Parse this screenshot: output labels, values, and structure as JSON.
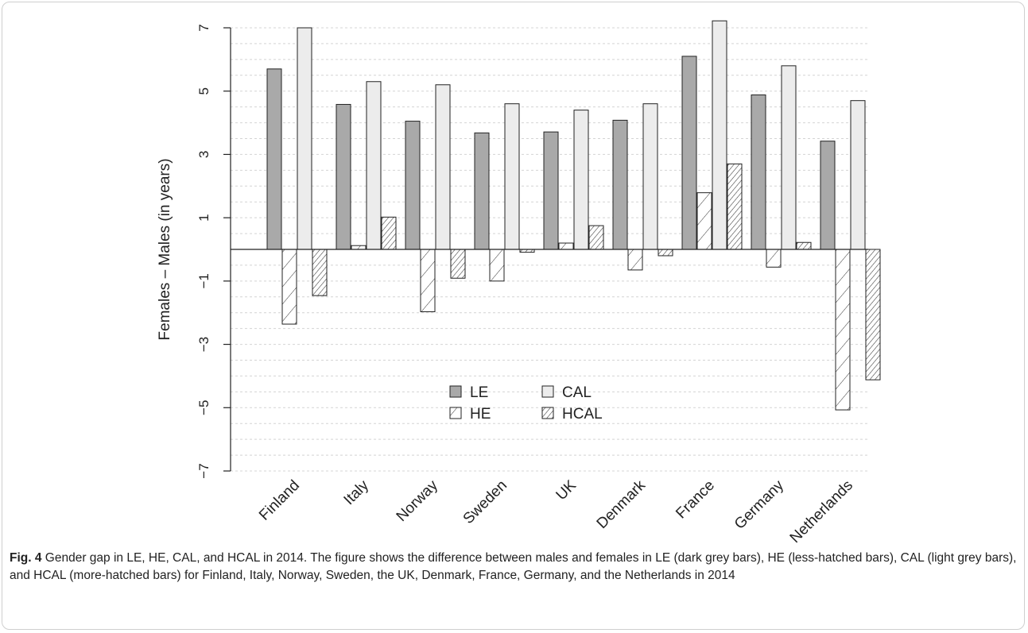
{
  "chart_data": {
    "type": "bar",
    "categories": [
      "Finland",
      "Italy",
      "Norway",
      "Sweden",
      "UK",
      "Denmark",
      "France",
      "Germany",
      "Netherlands"
    ],
    "series": [
      {
        "name": "LE",
        "pattern": "dark",
        "values": [
          5.7,
          4.58,
          4.05,
          3.68,
          3.71,
          4.08,
          6.1,
          4.88,
          3.42
        ]
      },
      {
        "name": "HE",
        "pattern": "hatch-light",
        "values": [
          -2.36,
          0.12,
          -1.97,
          -1.0,
          0.2,
          -0.65,
          1.79,
          -0.56,
          -5.07
        ]
      },
      {
        "name": "CAL",
        "pattern": "light",
        "values": [
          7.0,
          5.3,
          5.2,
          4.6,
          4.4,
          4.6,
          7.22,
          5.8,
          4.7
        ]
      },
      {
        "name": "HCAL",
        "pattern": "hatch-dense",
        "values": [
          -1.46,
          1.02,
          -0.91,
          -0.09,
          0.75,
          -0.2,
          2.7,
          0.22,
          -4.12
        ]
      }
    ],
    "ylabel": "Females – Males (in years)",
    "ylim": [
      -7,
      7.3
    ],
    "yticks": [
      -7,
      -5,
      -3,
      -1,
      1,
      3,
      5,
      7
    ],
    "ytick_labels": [
      "−7",
      "−5",
      "−3",
      "−1",
      "1",
      "3",
      "5",
      "7"
    ],
    "grid": true,
    "legend_position": "lower-center",
    "colors": {
      "dark": "#a9a9a9",
      "light": "#ececec",
      "stroke": "#222222",
      "grid": "#d4d4d4"
    }
  },
  "caption": {
    "label": "Fig. 4",
    "text": " Gender gap in LE, HE, CAL, and HCAL in 2014. The figure shows the difference between males and females in LE (dark grey bars), HE (less-hatched bars), CAL (light grey bars), and HCAL (more-hatched bars) for Finland, Italy, Norway, Sweden, the UK, Denmark, France, Germany, and the Netherlands in 2014"
  }
}
